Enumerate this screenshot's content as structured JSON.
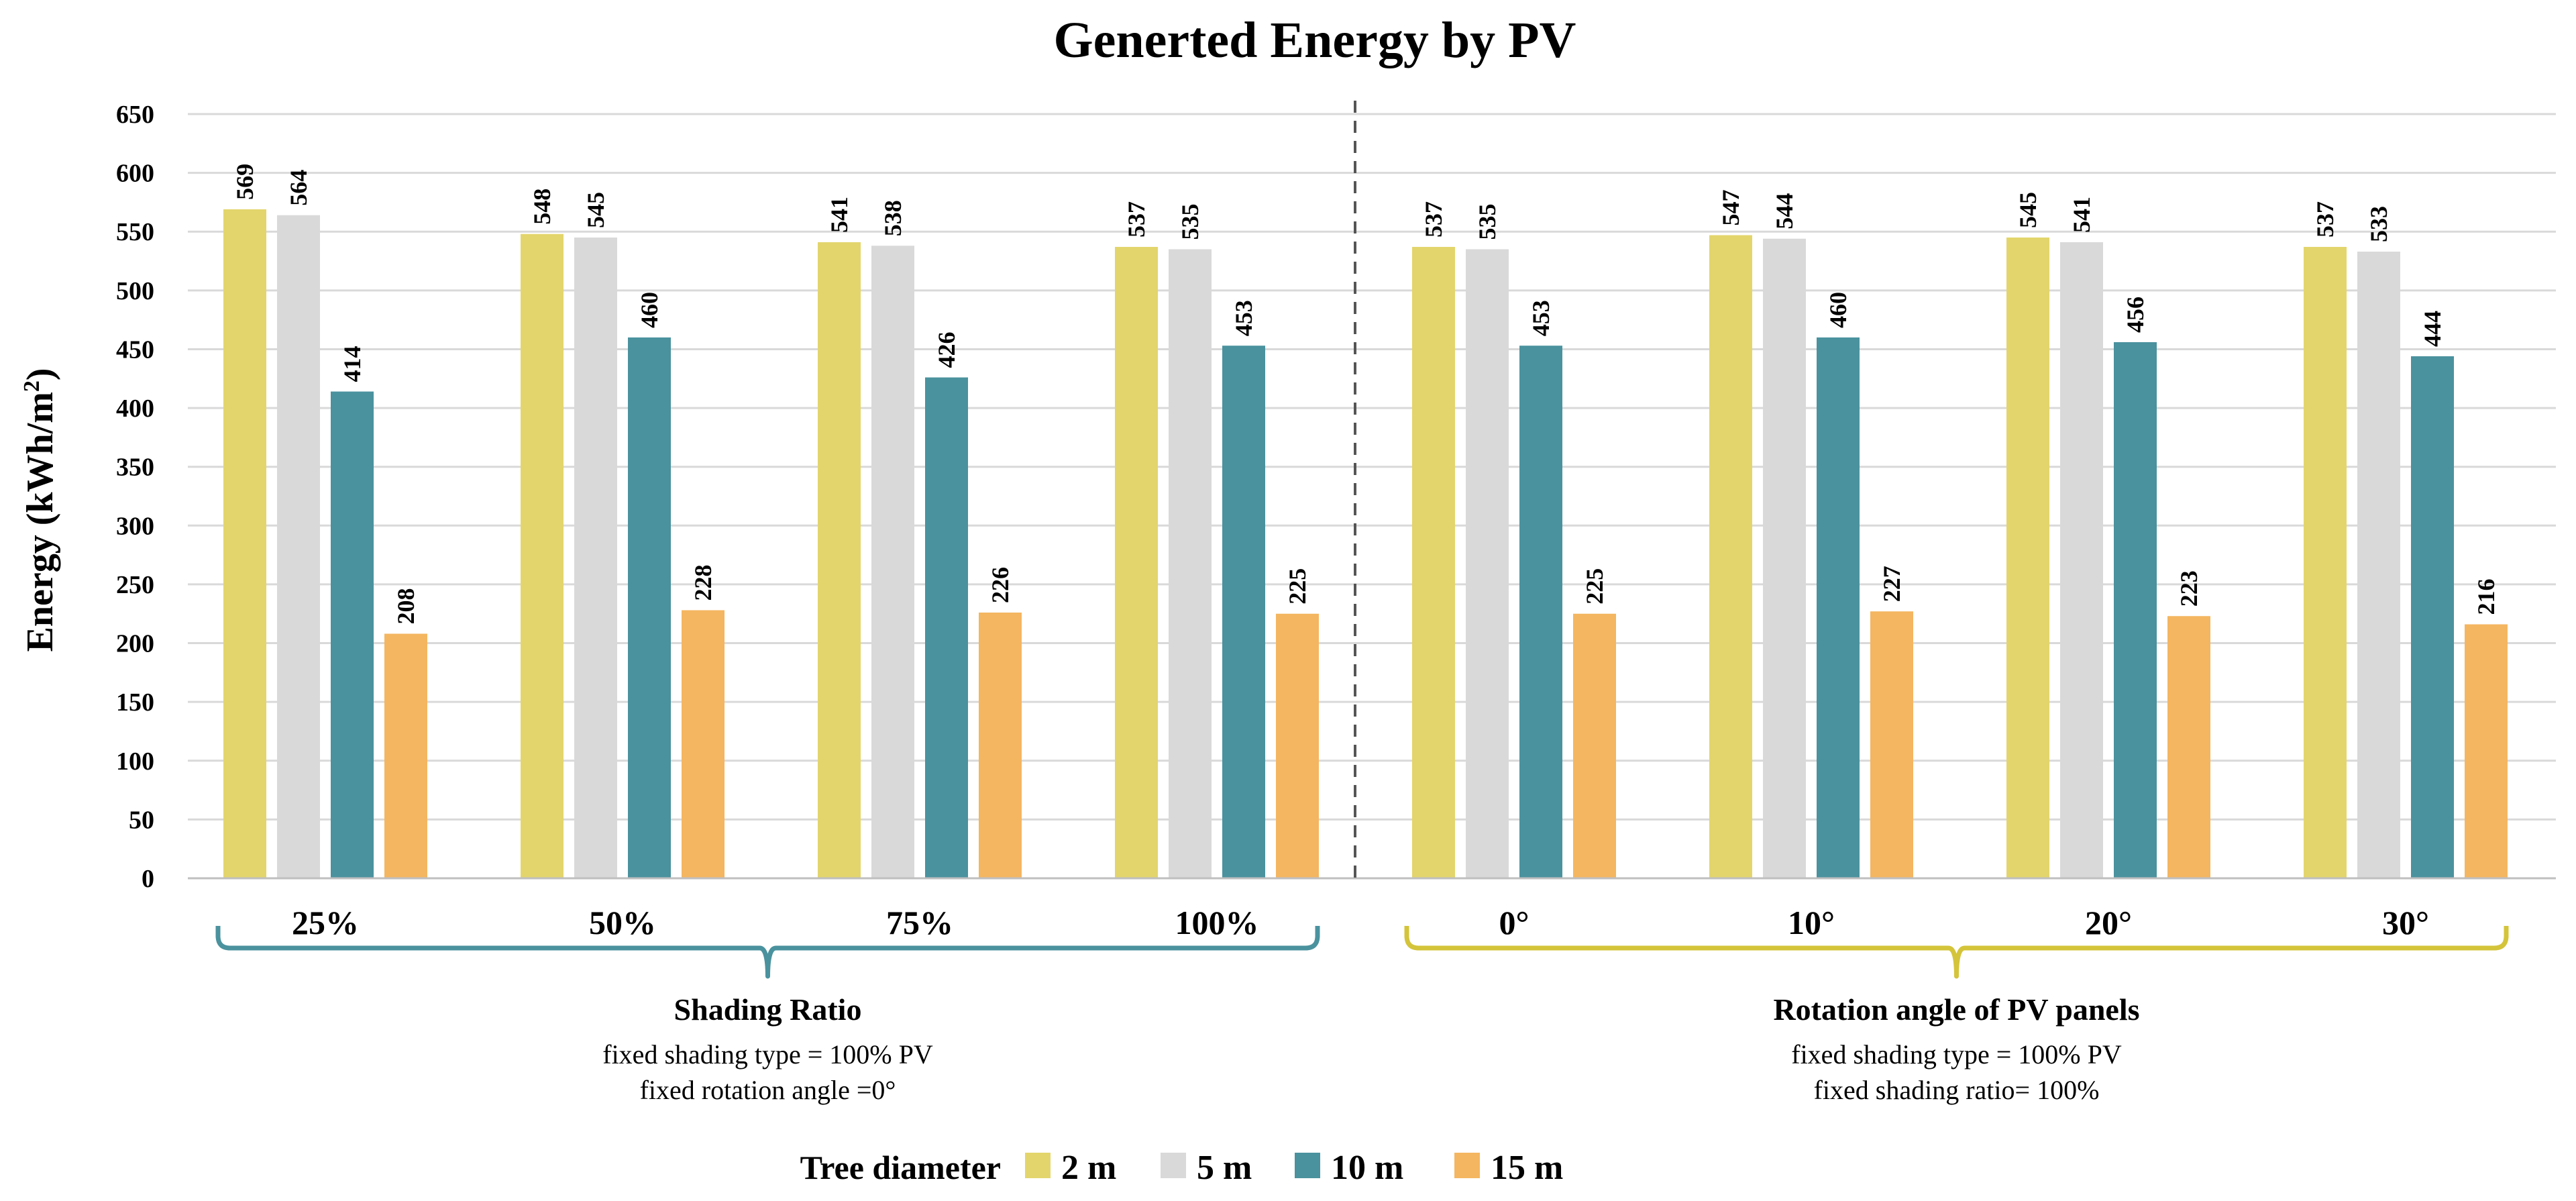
{
  "chart_data": {
    "type": "bar",
    "title": "Generted Energy by PV",
    "ylabel": "Energy (kWh/m",
    "ylabel_sup": "2",
    "ylabel_close": ")",
    "ylim": [
      0,
      650
    ],
    "yticks": [
      0,
      50,
      100,
      150,
      200,
      250,
      300,
      350,
      400,
      450,
      500,
      550,
      600,
      650
    ],
    "grid": true,
    "categories": [
      "25%",
      "50%",
      "75%",
      "100%",
      "0°",
      "10°",
      "20°",
      "30°"
    ],
    "series": [
      {
        "name": "2 m",
        "color": "#E3D56C",
        "values": [
          569,
          548,
          541,
          537,
          537,
          547,
          545,
          537
        ]
      },
      {
        "name": "5 m",
        "color": "#D9D9D9",
        "values": [
          564,
          545,
          538,
          535,
          535,
          544,
          541,
          533
        ]
      },
      {
        "name": "10 m",
        "color": "#4A929E",
        "values": [
          414,
          460,
          426,
          453,
          453,
          460,
          456,
          444
        ]
      },
      {
        "name": "15 m",
        "color": "#F4B660",
        "values": [
          208,
          228,
          226,
          225,
          225,
          227,
          223,
          216
        ]
      }
    ],
    "legend_title": "Tree diameter",
    "legend_position": "bottom",
    "groups": [
      {
        "title": "Shading Ratio",
        "lines": [
          "fixed shading type = 100% PV",
          "fixed rotation angle =0°"
        ],
        "color": "#4A929E",
        "category_range": [
          0,
          3
        ]
      },
      {
        "title": "Rotation angle of PV panels",
        "lines": [
          "fixed shading type = 100% PV",
          "fixed shading ratio= 100%"
        ],
        "color": "#D4C43A",
        "category_range": [
          4,
          7
        ]
      }
    ]
  }
}
